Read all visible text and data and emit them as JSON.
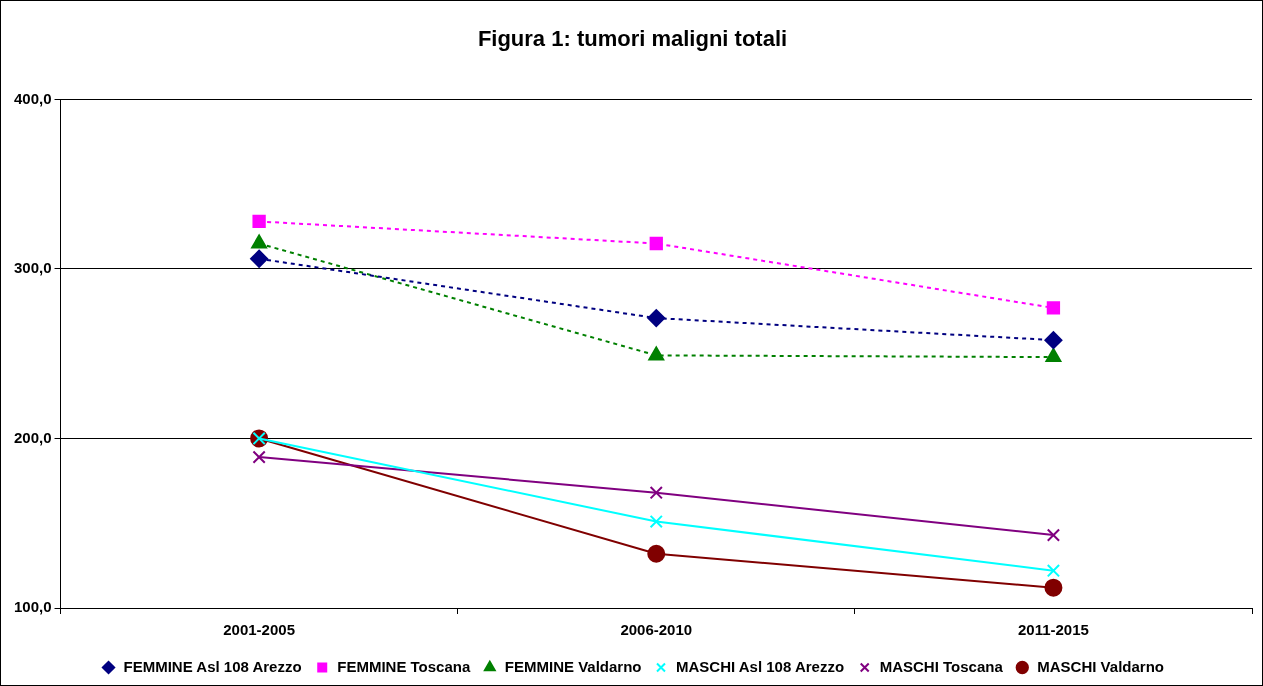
{
  "chart_data": {
    "type": "line",
    "title": "Figura 1: tumori maligni totali",
    "categories": [
      "2001-2005",
      "2006-2010",
      "2011-2015"
    ],
    "series": [
      {
        "name": "FEMMINE Asl 108 Arezzo",
        "color": "#000080",
        "values": [
          306,
          271,
          258
        ],
        "marker": "diamond",
        "line_style": "dotted"
      },
      {
        "name": "FEMMINE Toscana",
        "color": "#ff00ff",
        "values": [
          328,
          315,
          277
        ],
        "marker": "square",
        "line_style": "dotted"
      },
      {
        "name": "FEMMINE Valdarno",
        "color": "#008000",
        "values": [
          315,
          249,
          248
        ],
        "marker": "triangle",
        "line_style": "dotted"
      },
      {
        "name": "MASCHI Asl 108 Arezzo",
        "color": "#00ffff",
        "values": [
          200,
          151,
          122
        ],
        "marker": "cross",
        "line_style": "solid"
      },
      {
        "name": "MASCHI Toscana",
        "color": "#800080",
        "values": [
          189,
          168,
          143
        ],
        "marker": "cross",
        "line_style": "solid"
      },
      {
        "name": "MASCHI Valdarno",
        "color": "#800000",
        "values": [
          200,
          132,
          112
        ],
        "marker": "circle",
        "line_style": "solid"
      }
    ],
    "ylim": [
      100,
      400
    ],
    "yticks": [
      {
        "value": 100,
        "label": "100,0"
      },
      {
        "value": 200,
        "label": "200,0"
      },
      {
        "value": 300,
        "label": "300,0"
      },
      {
        "value": 400,
        "label": "400,0"
      }
    ],
    "grid": "y",
    "legend": "bottom"
  }
}
